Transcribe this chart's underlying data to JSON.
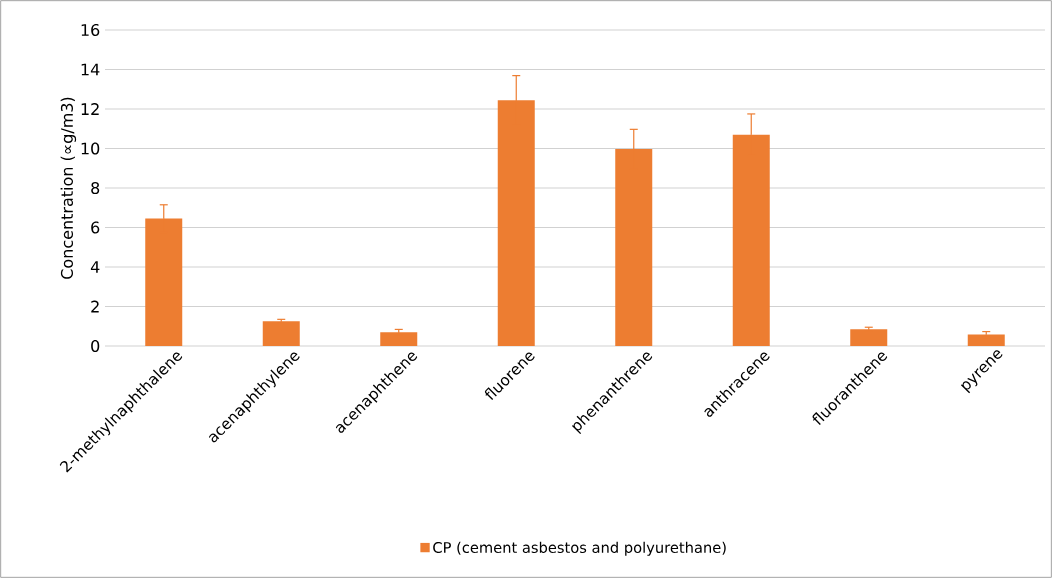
{
  "chart_data": {
    "type": "bar",
    "ylabel": "Concentration (∝g/m3)",
    "categories": [
      "2-methylnaphthalene",
      "acenaphthylene",
      "acenaphthene",
      "fluorene",
      "phenanthrene",
      "anthracene",
      "fluoranthene",
      "pyrene"
    ],
    "series": [
      {
        "name": "CP (cement asbestos and polyurethane)",
        "color": "#ed7d31",
        "values": [
          6.45,
          1.25,
          0.69,
          12.44,
          9.97,
          10.7,
          0.85,
          0.58
        ],
        "errors": [
          0.7,
          0.1,
          0.15,
          1.25,
          1.0,
          1.05,
          0.1,
          0.15
        ]
      }
    ],
    "ylim": [
      0,
      16
    ],
    "yticks": [
      0,
      2,
      4,
      6,
      8,
      10,
      12,
      14,
      16
    ],
    "grid": "y",
    "legend": "bottom"
  }
}
